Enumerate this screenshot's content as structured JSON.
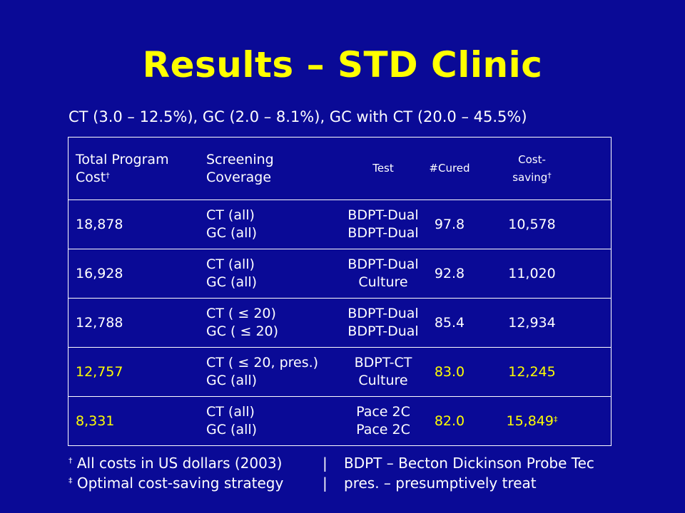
{
  "title": "Results – STD Clinic",
  "subtitle": "CT (3.0 – 12.5%), GC (2.0 – 8.1%), GC with CT (20.0 – 45.5%)",
  "table": {
    "headers": {
      "total_cost": [
        "Total Program",
        "Cost"
      ],
      "total_cost_mark": "†",
      "coverage": [
        "Screening",
        "Coverage"
      ],
      "test": "Test",
      "cured": "#Cured",
      "cost_saving": [
        "Cost-",
        "saving"
      ],
      "cost_saving_mark": "†"
    },
    "rows": [
      {
        "cost": "18,878",
        "coverage": [
          "CT (all)",
          "GC (all)"
        ],
        "test": [
          "BDPT-Dual",
          "BDPT-Dual"
        ],
        "cured": "97.8",
        "saving": "10,578",
        "mark": "",
        "highlight": false
      },
      {
        "cost": "16,928",
        "coverage": [
          "CT (all)",
          "GC (all)"
        ],
        "test": [
          "BDPT-Dual",
          "Culture"
        ],
        "cured": "92.8",
        "saving": "11,020",
        "mark": "",
        "highlight": false
      },
      {
        "cost": "12,788",
        "coverage": [
          "CT ( ≤ 20)",
          "GC ( ≤ 20)"
        ],
        "test": [
          "BDPT-Dual",
          "BDPT-Dual"
        ],
        "cured": "85.4",
        "saving": "12,934",
        "mark": "",
        "highlight": false
      },
      {
        "cost": "12,757",
        "coverage": [
          "CT ( ≤ 20, pres.)",
          "GC (all)"
        ],
        "test": [
          "BDPT-CT",
          "Culture"
        ],
        "cured": "83.0",
        "saving": "12,245",
        "mark": "",
        "highlight": true
      },
      {
        "cost": "8,331",
        "coverage": [
          "CT (all)",
          "GC (all)"
        ],
        "test": [
          "Pace 2C",
          "Pace 2C"
        ],
        "cured": "82.0",
        "saving": "15,849",
        "mark": "‡",
        "highlight": true
      }
    ]
  },
  "footnotes": [
    {
      "mark": "†",
      "left": "All costs in US dollars (2003)",
      "sep": "|",
      "right": "BDPT – Becton Dickinson Probe Tec"
    },
    {
      "mark": "‡",
      "left": "Optimal cost-saving strategy",
      "sep": "|",
      "right": "pres. – presumptively treat"
    }
  ],
  "colors": {
    "background": "#0a0a96",
    "title": "#ffff00",
    "highlight": "#ffff00",
    "text": "#ffffff"
  }
}
